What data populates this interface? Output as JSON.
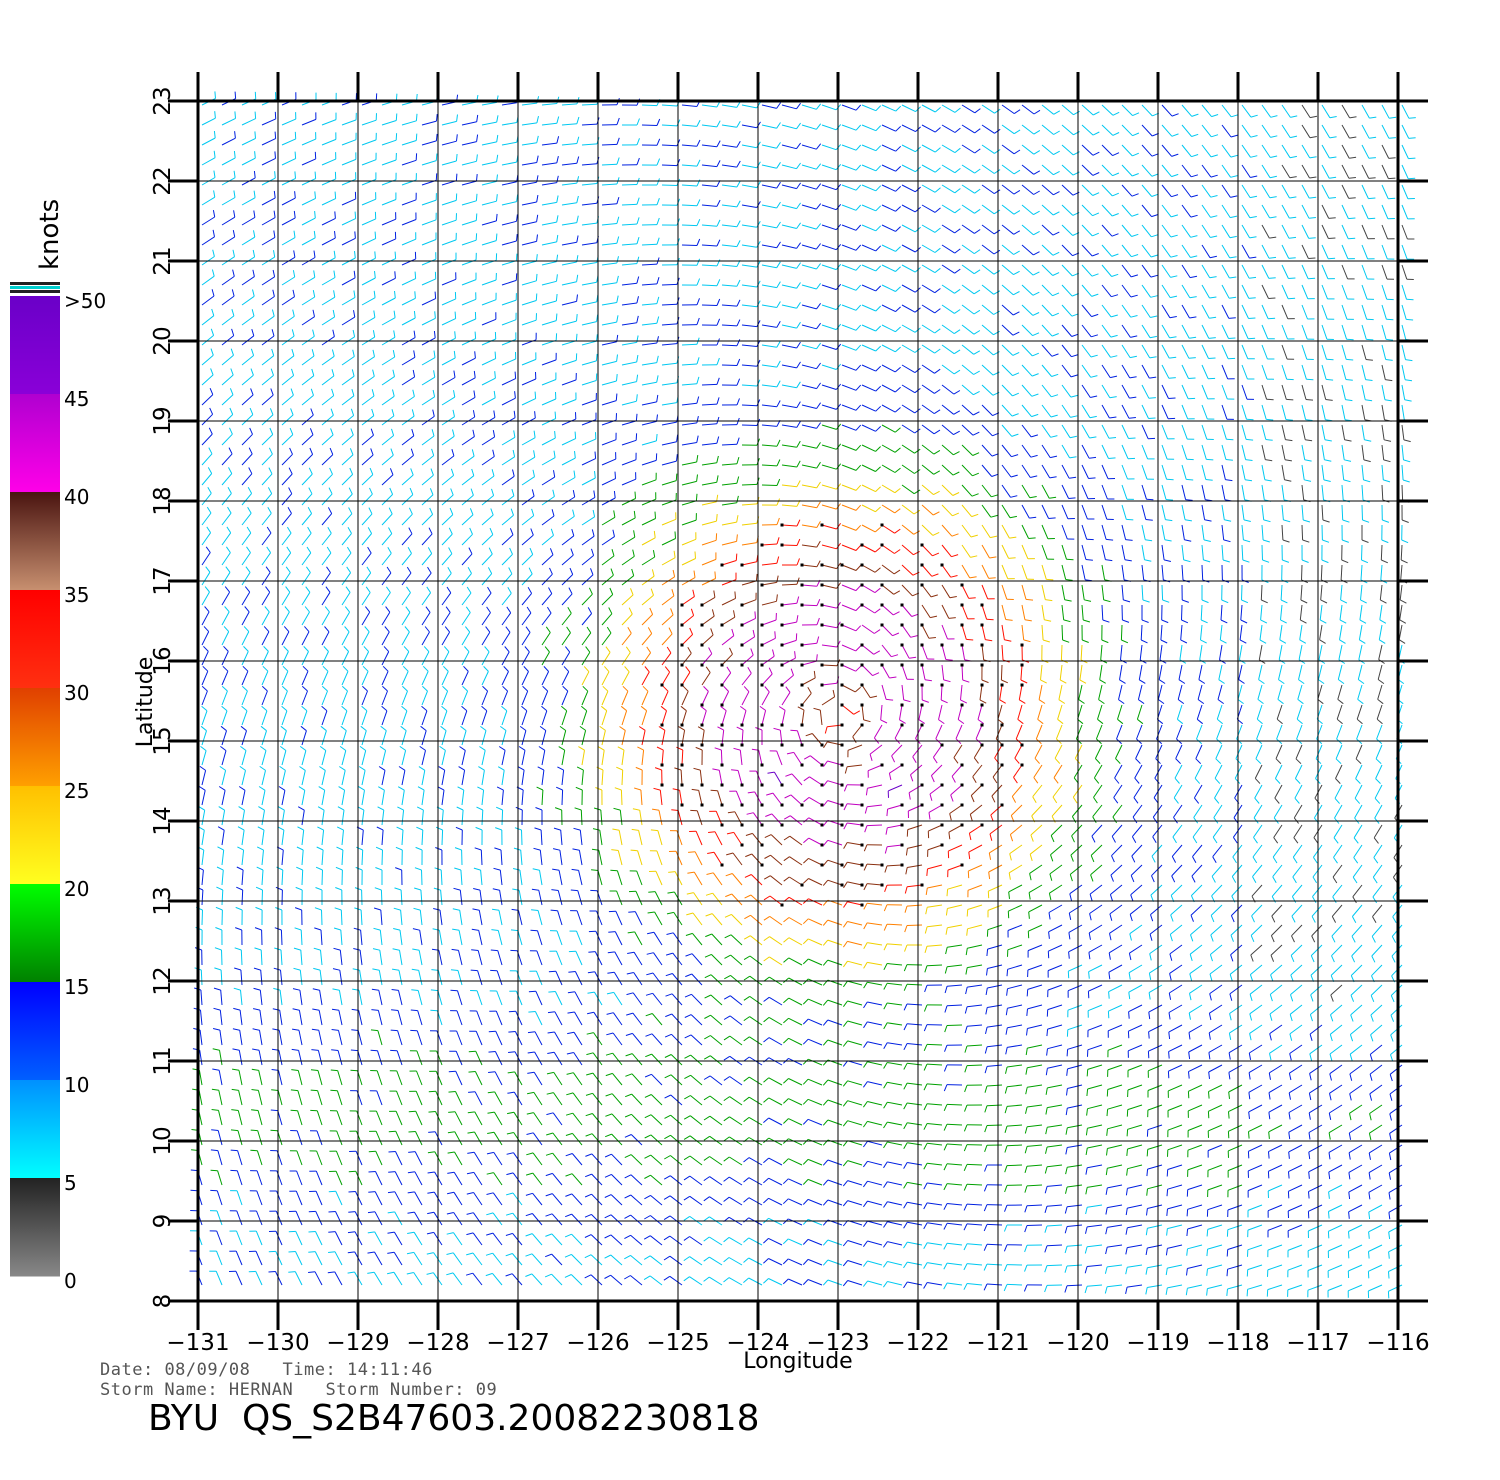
{
  "colorbar": {
    "unit_label": "knots",
    "tick_labels": [
      ">50",
      "45",
      "40",
      "35",
      "30",
      "25",
      "20",
      "15",
      "10",
      "5",
      "0"
    ],
    "bands": [
      {
        "range": "45-50",
        "top": "#6a00c8",
        "bottom": "#8a00d8"
      },
      {
        "range": "40-45",
        "top": "#b000d0",
        "bottom": "#ff00e8"
      },
      {
        "range": "35-40",
        "top": "#4a1410",
        "bottom": "#c89070"
      },
      {
        "range": "30-35",
        "top": "#ff0000",
        "bottom": "#ff3010"
      },
      {
        "range": "25-30",
        "top": "#e04000",
        "bottom": "#ffa000"
      },
      {
        "range": "20-25",
        "top": "#ffc000",
        "bottom": "#ffff20"
      },
      {
        "range": "15-20",
        "top": "#00ff00",
        "bottom": "#008000"
      },
      {
        "range": "10-15",
        "top": "#0000ff",
        "bottom": "#0060ff"
      },
      {
        "range": "5-10",
        "top": "#0090ff",
        "bottom": "#00ffff"
      },
      {
        "range": "0-5",
        "top": "#222222",
        "bottom": "#888888"
      }
    ]
  },
  "map": {
    "lon_range": [
      -131,
      -116
    ],
    "lat_range": [
      8,
      23
    ],
    "xlabel": "Longitude",
    "ylabel": "Latitude",
    "lon_ticks": [
      "−131",
      "−130",
      "−129",
      "−128",
      "−127",
      "−126",
      "−125",
      "−124",
      "−123",
      "−122",
      "−121",
      "−120",
      "−119",
      "−118",
      "−117",
      "−116"
    ],
    "lat_ticks": [
      "8",
      "9",
      "10",
      "11",
      "12",
      "13",
      "14",
      "15",
      "16",
      "17",
      "18",
      "19",
      "20",
      "21",
      "22",
      "23"
    ],
    "storm_center": {
      "lon": -123,
      "lat": 15.3
    }
  },
  "footer": {
    "date_label": "Date:",
    "date_value": "08/09/08",
    "time_label": "Time:",
    "time_value": "14:11:46",
    "storm_name_label": "Storm Name:",
    "storm_name": "HERNAN",
    "storm_number_label": "Storm Number:",
    "storm_number": "09",
    "file_id": "BYU  QS_S2B47603.20082230818"
  }
}
